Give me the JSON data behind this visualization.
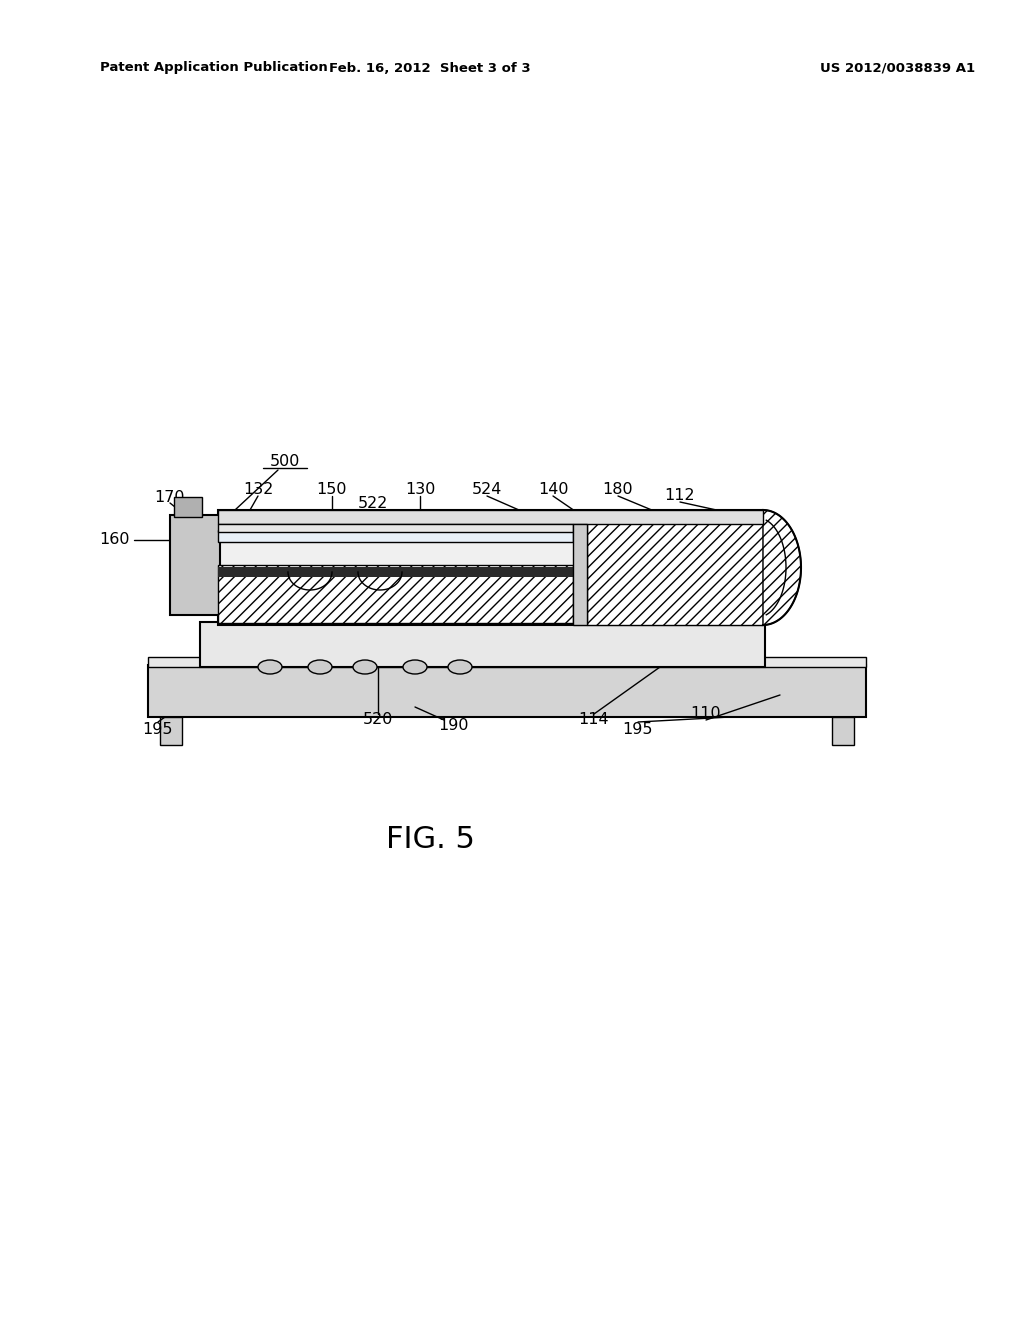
{
  "bg_color": "#ffffff",
  "line_color": "#000000",
  "header_left": "Patent Application Publication",
  "header_mid": "Feb. 16, 2012  Sheet 3 of 3",
  "header_right": "US 2012/0038839 A1",
  "fig_label": "FIG. 5"
}
